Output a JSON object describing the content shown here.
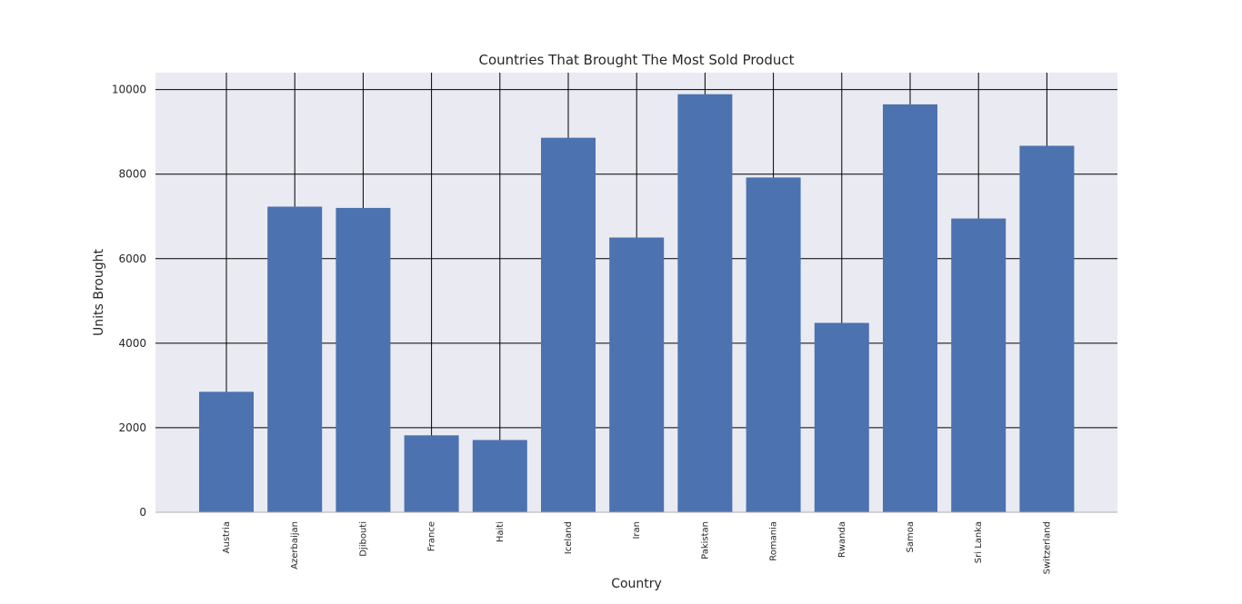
{
  "chart_data": {
    "type": "bar",
    "title": "Countries That Brought The Most Sold Product",
    "xlabel": "Country",
    "ylabel": "Units Brought",
    "categories": [
      "Austria",
      "Azerbaijan",
      "Djibouti",
      "France",
      "Haiti",
      "Iceland",
      "Iran",
      "Pakistan",
      "Romania",
      "Rwanda",
      "Samoa",
      "Sri Lanka",
      "Switzerland"
    ],
    "values": [
      2850,
      7230,
      7200,
      1820,
      1710,
      8860,
      6500,
      9890,
      7920,
      4480,
      9650,
      6950,
      8670
    ],
    "ylim": [
      0,
      10400
    ],
    "yticks": [
      "0",
      "2000",
      "4000",
      "6000",
      "8000",
      "10000"
    ],
    "grid": true,
    "colors": {
      "bar": "#4c72b0",
      "plot_bg": "#eaeaf2",
      "grid": "#000000",
      "text": "#262626"
    }
  }
}
